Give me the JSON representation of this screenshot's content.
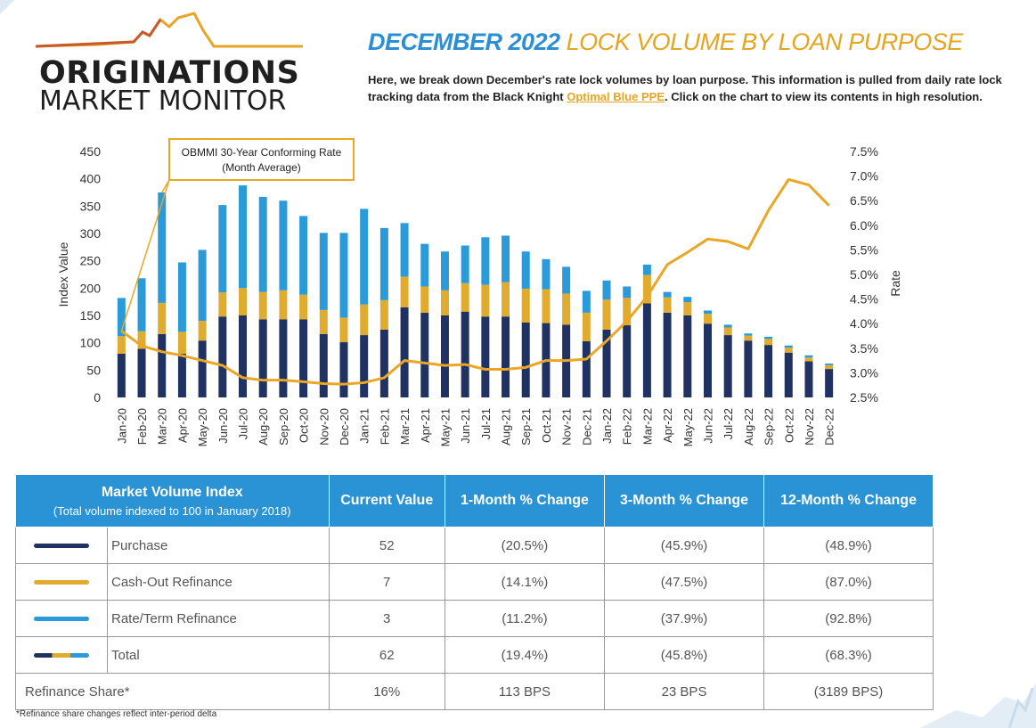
{
  "header": {
    "logo_line1": "ORIGINATIONS",
    "logo_line2": "MARKET MONITOR",
    "title_bold": "DECEMBER 2022",
    "title_rest": "LOCK VOLUME BY LOAN PURPOSE",
    "desc_before": "Here, we break down December's rate lock volumes by loan purpose. This information is pulled from daily rate lock tracking data from the Black Knight ",
    "desc_link": "Optimal Blue PPE",
    "desc_after": ". Click on the chart to view its contents in high resolution."
  },
  "colors": {
    "purchase": "#1f3262",
    "cashout": "#e0ac30",
    "rateterm": "#2a9bd8",
    "rate_line": "#eaa625",
    "header_blue": "#2a93d5",
    "title_gold": "#e6a520"
  },
  "chart_data": {
    "type": "bar",
    "stacked": true,
    "categories": [
      "Jan-20",
      "Feb-20",
      "Mar-20",
      "Apr-20",
      "May-20",
      "Jun-20",
      "Jul-20",
      "Aug-20",
      "Sep-20",
      "Oct-20",
      "Nov-20",
      "Dec-20",
      "Jan-21",
      "Feb-21",
      "Mar-21",
      "Apr-21",
      "May-21",
      "Jun-21",
      "Jul-21",
      "Aug-21",
      "Sep-21",
      "Oct-21",
      "Nov-21",
      "Dec-21",
      "Jan-22",
      "Feb-22",
      "Mar-22",
      "Apr-22",
      "May-22",
      "Jun-22",
      "Jul-22",
      "Aug-22",
      "Sep-22",
      "Oct-22",
      "Nov-22",
      "Dec-22"
    ],
    "series": [
      {
        "name": "Purchase",
        "color": "#1f3262",
        "values": [
          80,
          89,
          116,
          80,
          104,
          148,
          150,
          143,
          143,
          143,
          116,
          101,
          114,
          124,
          165,
          155,
          150,
          157,
          148,
          148,
          137,
          136,
          133,
          103,
          124,
          132,
          172,
          155,
          150,
          135,
          114,
          104,
          96,
          82,
          66,
          52
        ]
      },
      {
        "name": "Cash-Out Refinance",
        "color": "#e0ac30",
        "values": [
          32,
          32,
          57,
          40,
          36,
          44,
          50,
          50,
          53,
          45,
          44,
          45,
          56,
          54,
          56,
          48,
          46,
          52,
          58,
          63,
          62,
          62,
          57,
          52,
          55,
          50,
          52,
          28,
          24,
          18,
          14,
          9,
          11,
          9,
          7,
          7
        ]
      },
      {
        "name": "Rate/Term Refinance",
        "color": "#2a9bd8",
        "values": [
          70,
          97,
          202,
          127,
          130,
          160,
          188,
          174,
          164,
          144,
          141,
          155,
          175,
          132,
          98,
          78,
          71,
          69,
          87,
          85,
          68,
          55,
          49,
          40,
          35,
          21,
          19,
          10,
          10,
          6,
          5,
          4,
          4,
          4,
          4,
          3
        ]
      }
    ],
    "rate_line": {
      "name": "OBMMI 30-Year Conforming Rate (Month Average)",
      "values": [
        3.85,
        3.55,
        3.43,
        3.35,
        3.25,
        3.15,
        2.9,
        2.85,
        2.85,
        2.82,
        2.78,
        2.77,
        2.8,
        2.9,
        3.25,
        3.2,
        3.15,
        3.17,
        3.07,
        3.07,
        3.11,
        3.25,
        3.25,
        3.28,
        3.65,
        4.05,
        4.55,
        5.2,
        5.45,
        5.72,
        5.67,
        5.52,
        6.3,
        6.93,
        6.82,
        6.4
      ]
    },
    "y_left": {
      "label": "Index Value",
      "ticks": [
        0,
        50,
        100,
        150,
        200,
        250,
        300,
        350,
        400,
        450
      ],
      "ylim": [
        0,
        450
      ]
    },
    "y_right": {
      "label": "Rate",
      "ticks": [
        "2.5%",
        "3.0%",
        "3.5%",
        "4.0%",
        "4.5%",
        "5.0%",
        "5.5%",
        "6.0%",
        "6.5%",
        "7.0%",
        "7.5%"
      ],
      "ylim": [
        2.5,
        7.5
      ]
    },
    "annotation": {
      "line1": "OBMMI 30-Year Conforming Rate",
      "line2": "(Month Average)"
    }
  },
  "table": {
    "header": {
      "col1_title": "Market Volume Index",
      "col1_sub": "(Total volume indexed to 100 in January 2018)",
      "col2": "Current Value",
      "col3": "1-Month % Change",
      "col4": "3-Month % Change",
      "col5": "12-Month % Change"
    },
    "rows": [
      {
        "label": "Purchase",
        "current": "52",
        "m1": "(20.5%)",
        "m3": "(45.9%)",
        "m12": "(48.9%)"
      },
      {
        "label": "Cash-Out Refinance",
        "current": "7",
        "m1": "(14.1%)",
        "m3": "(47.5%)",
        "m12": "(87.0%)"
      },
      {
        "label": "Rate/Term Refinance",
        "current": "3",
        "m1": "(11.2%)",
        "m3": "(37.9%)",
        "m12": "(92.8%)"
      },
      {
        "label": "Total",
        "current": "62",
        "m1": "(19.4%)",
        "m3": "(45.8%)",
        "m12": "(68.3%)"
      }
    ],
    "share_row": {
      "label": "Refinance Share*",
      "current": "16%",
      "m1": "113 BPS",
      "m3": "23 BPS",
      "m12": "(3189 BPS)"
    }
  },
  "footnote": "*Refinance share changes reflect inter-period delta"
}
